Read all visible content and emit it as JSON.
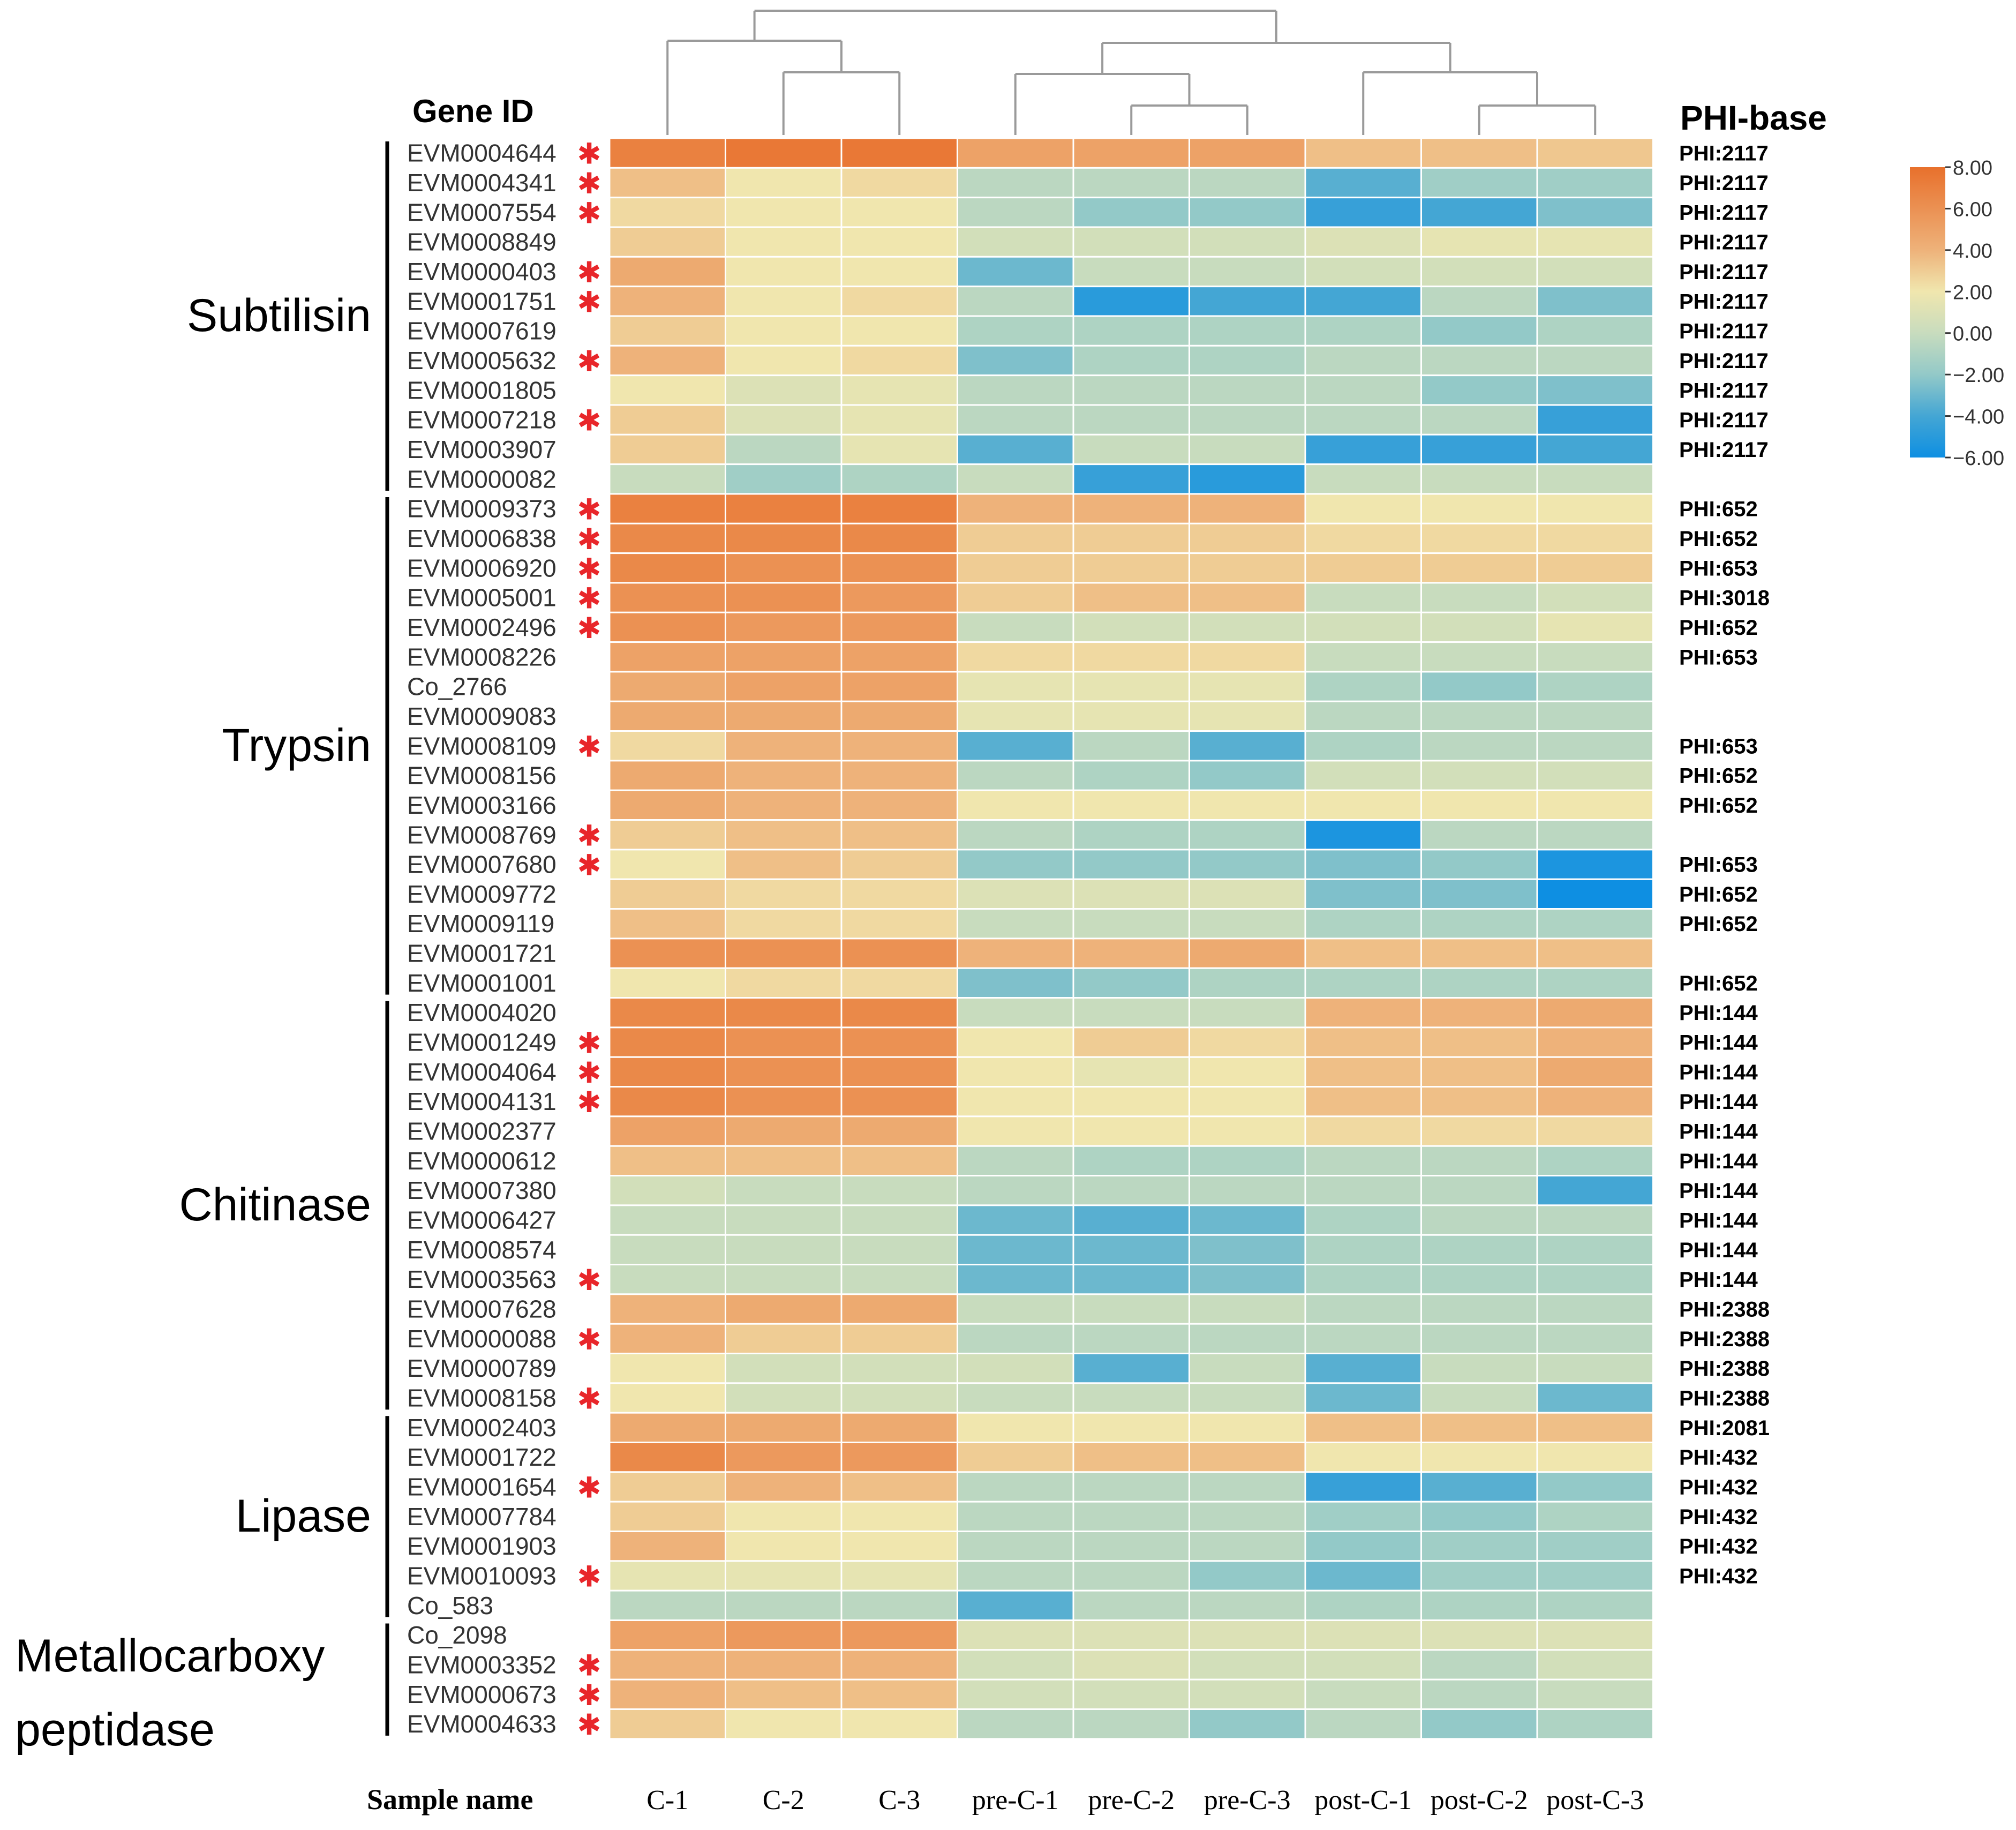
{
  "chart_data": {
    "type": "heatmap",
    "title": "",
    "row_header": "Gene ID",
    "right_header": "PHI-base",
    "xlabel": "Sample name",
    "columns": [
      "C-1",
      "C-2",
      "C-3",
      "pre-C-1",
      "pre-C-2",
      "pre-C-3",
      "post-C-1",
      "post-C-2",
      "post-C-3"
    ],
    "colorbar": {
      "ticks": [
        "8.00",
        "6.00",
        "4.00",
        "2.00",
        "0.00",
        "−2.00",
        "−4.00",
        "−6.00"
      ],
      "range": [
        -6,
        8
      ],
      "stops": [
        {
          "value": 8,
          "color": "#e8702c"
        },
        {
          "value": 4,
          "color": "#eeb27a"
        },
        {
          "value": 2,
          "color": "#f0e6ae"
        },
        {
          "value": 0,
          "color": "#c8dcbe"
        },
        {
          "value": -2,
          "color": "#93c9c8"
        },
        {
          "value": -4,
          "color": "#44a6d4"
        },
        {
          "value": -6,
          "color": "#0e8fe2"
        }
      ]
    },
    "mark_symbol": "✱",
    "mark_color": "#e8262a",
    "groups": [
      {
        "name": "Subtilisin",
        "lines": [
          "Subtilisin"
        ],
        "start": 0,
        "end": 11
      },
      {
        "name": "Trypsin",
        "lines": [
          "Trypsin"
        ],
        "start": 12,
        "end": 28
      },
      {
        "name": "Chitinase",
        "lines": [
          "Chitinase"
        ],
        "start": 29,
        "end": 42
      },
      {
        "name": "Lipase",
        "lines": [
          "Lipase"
        ],
        "start": 43,
        "end": 49
      },
      {
        "name": "Metallocarboxy peptidase",
        "lines": [
          "Metallocarboxy",
          "peptidase"
        ],
        "start": 50,
        "end": 53
      }
    ],
    "rows": [
      {
        "id": "EVM0004644",
        "mark": true,
        "phi": "PHI:2117",
        "values": [
          7.0,
          7.5,
          7.5,
          5.0,
          5.0,
          5.0,
          3.5,
          3.5,
          3.2
        ]
      },
      {
        "id": "EVM0004341",
        "mark": true,
        "phi": "PHI:2117",
        "values": [
          3.5,
          2.0,
          2.5,
          -0.5,
          -0.5,
          -0.5,
          -3.5,
          -1.5,
          -1.5
        ]
      },
      {
        "id": "EVM0007554",
        "mark": true,
        "phi": "PHI:2117",
        "values": [
          2.5,
          2.0,
          2.0,
          -0.5,
          -2.0,
          -2.0,
          -4.5,
          -4.0,
          -2.5
        ]
      },
      {
        "id": "EVM0008849",
        "mark": false,
        "phi": "PHI:2117",
        "values": [
          3.0,
          2.0,
          2.0,
          0.5,
          0.5,
          0.5,
          1.0,
          1.5,
          1.5
        ]
      },
      {
        "id": "EVM0000403",
        "mark": true,
        "phi": "PHI:2117",
        "values": [
          4.5,
          2.0,
          2.0,
          -3.0,
          0.0,
          0.0,
          0.5,
          0.5,
          0.5
        ]
      },
      {
        "id": "EVM0001751",
        "mark": true,
        "phi": "PHI:2117",
        "values": [
          4.0,
          2.0,
          2.5,
          -0.5,
          -5.0,
          -4.0,
          -4.0,
          -0.5,
          -2.5
        ]
      },
      {
        "id": "EVM0007619",
        "mark": false,
        "phi": "PHI:2117",
        "values": [
          3.0,
          2.0,
          2.0,
          -1.0,
          -1.0,
          -1.0,
          -1.0,
          -2.0,
          -1.0
        ]
      },
      {
        "id": "EVM0005632",
        "mark": true,
        "phi": "PHI:2117",
        "values": [
          4.0,
          2.0,
          2.5,
          -2.5,
          -1.0,
          -1.0,
          -0.5,
          -0.5,
          -0.5
        ]
      },
      {
        "id": "EVM0001805",
        "mark": false,
        "phi": "PHI:2117",
        "values": [
          2.0,
          1.0,
          1.5,
          -0.5,
          -0.5,
          -0.5,
          -0.5,
          -2.0,
          -2.5
        ]
      },
      {
        "id": "EVM0007218",
        "mark": true,
        "phi": "PHI:2117",
        "values": [
          3.0,
          1.0,
          1.5,
          -0.5,
          -0.5,
          -0.5,
          -0.5,
          -0.5,
          -4.5
        ]
      },
      {
        "id": "EVM0003907",
        "mark": false,
        "phi": "PHI:2117",
        "values": [
          3.0,
          -0.5,
          1.5,
          -3.5,
          0.0,
          0.0,
          -4.5,
          -4.5,
          -4.0
        ]
      },
      {
        "id": "EVM0000082",
        "mark": false,
        "phi": "",
        "values": [
          0.0,
          -1.5,
          -1.0,
          0.0,
          -4.5,
          -5.0,
          0.0,
          0.0,
          0.0
        ]
      },
      {
        "id": "EVM0009373",
        "mark": true,
        "phi": "PHI:652",
        "values": [
          7.0,
          7.0,
          7.0,
          4.0,
          4.0,
          4.0,
          2.0,
          2.0,
          2.0
        ]
      },
      {
        "id": "EVM0006838",
        "mark": true,
        "phi": "PHI:652",
        "values": [
          6.5,
          6.5,
          6.5,
          3.0,
          3.0,
          3.0,
          2.5,
          2.5,
          2.5
        ]
      },
      {
        "id": "EVM0006920",
        "mark": true,
        "phi": "PHI:653",
        "values": [
          6.5,
          6.0,
          6.0,
          3.0,
          3.0,
          3.0,
          3.0,
          3.0,
          3.0
        ]
      },
      {
        "id": "EVM0005001",
        "mark": true,
        "phi": "PHI:3018",
        "values": [
          6.0,
          6.0,
          5.5,
          3.0,
          3.5,
          3.5,
          0.0,
          0.0,
          0.5
        ]
      },
      {
        "id": "EVM0002496",
        "mark": true,
        "phi": "PHI:652",
        "values": [
          6.0,
          5.5,
          5.5,
          0.0,
          0.5,
          0.5,
          0.5,
          0.5,
          1.5
        ]
      },
      {
        "id": "EVM0008226",
        "mark": false,
        "phi": "PHI:653",
        "values": [
          5.0,
          5.0,
          5.0,
          2.5,
          2.5,
          2.5,
          0.0,
          0.0,
          0.0
        ]
      },
      {
        "id": "Co_2766",
        "mark": false,
        "phi": "",
        "values": [
          4.5,
          5.0,
          5.0,
          1.5,
          1.5,
          1.5,
          -1.0,
          -2.0,
          -1.0
        ]
      },
      {
        "id": "EVM0009083",
        "mark": false,
        "phi": "",
        "values": [
          4.5,
          4.5,
          4.5,
          1.5,
          1.5,
          1.5,
          -0.5,
          -0.5,
          -0.5
        ]
      },
      {
        "id": "EVM0008109",
        "mark": true,
        "phi": "PHI:653",
        "values": [
          2.5,
          4.0,
          4.0,
          -3.5,
          -0.5,
          -3.5,
          -1.0,
          -0.5,
          -0.5
        ]
      },
      {
        "id": "EVM0008156",
        "mark": false,
        "phi": "PHI:652",
        "values": [
          4.5,
          4.0,
          4.0,
          -0.5,
          -1.0,
          -2.0,
          0.5,
          0.5,
          0.5
        ]
      },
      {
        "id": "EVM0003166",
        "mark": false,
        "phi": "PHI:652",
        "values": [
          4.5,
          4.0,
          4.0,
          2.0,
          2.0,
          2.0,
          2.0,
          2.0,
          2.0
        ]
      },
      {
        "id": "EVM0008769",
        "mark": true,
        "phi": "",
        "values": [
          3.0,
          3.5,
          3.5,
          -0.5,
          -1.0,
          -1.0,
          -5.5,
          -0.5,
          -0.5
        ]
      },
      {
        "id": "EVM0007680",
        "mark": true,
        "phi": "PHI:653",
        "values": [
          2.0,
          3.5,
          3.0,
          -2.0,
          -2.0,
          -2.0,
          -2.5,
          -2.0,
          -5.5
        ]
      },
      {
        "id": "EVM0009772",
        "mark": false,
        "phi": "PHI:652",
        "values": [
          3.0,
          2.5,
          2.5,
          1.0,
          1.0,
          1.0,
          -2.5,
          -2.5,
          -6.0
        ]
      },
      {
        "id": "EVM0009119",
        "mark": false,
        "phi": "PHI:652",
        "values": [
          3.5,
          2.5,
          2.5,
          0.0,
          0.0,
          0.0,
          -1.0,
          -1.0,
          -1.0
        ]
      },
      {
        "id": "EVM0001721",
        "mark": false,
        "phi": "",
        "values": [
          6.0,
          6.0,
          6.0,
          4.0,
          4.0,
          4.5,
          3.5,
          3.5,
          3.5
        ]
      },
      {
        "id": "EVM0001001",
        "mark": false,
        "phi": "PHI:652",
        "values": [
          2.0,
          2.5,
          2.5,
          -2.5,
          -2.0,
          -1.0,
          -1.0,
          -1.0,
          -1.0
        ]
      },
      {
        "id": "EVM0004020",
        "mark": false,
        "phi": "PHI:144",
        "values": [
          6.5,
          6.5,
          6.5,
          0.0,
          0.0,
          0.0,
          4.0,
          4.0,
          4.5
        ]
      },
      {
        "id": "EVM0001249",
        "mark": true,
        "phi": "PHI:144",
        "values": [
          6.5,
          6.0,
          6.0,
          2.0,
          3.0,
          2.5,
          3.5,
          3.5,
          4.0
        ]
      },
      {
        "id": "EVM0004064",
        "mark": true,
        "phi": "PHI:144",
        "values": [
          6.5,
          6.0,
          6.0,
          2.0,
          1.5,
          2.0,
          3.5,
          3.5,
          4.5
        ]
      },
      {
        "id": "EVM0004131",
        "mark": true,
        "phi": "PHI:144",
        "values": [
          6.5,
          6.0,
          6.0,
          2.0,
          2.0,
          2.0,
          3.5,
          3.5,
          4.0
        ]
      },
      {
        "id": "EVM0002377",
        "mark": false,
        "phi": "PHI:144",
        "values": [
          5.0,
          4.5,
          4.5,
          2.0,
          2.0,
          2.0,
          2.5,
          2.5,
          2.5
        ]
      },
      {
        "id": "EVM0000612",
        "mark": false,
        "phi": "PHI:144",
        "values": [
          3.5,
          3.5,
          3.5,
          -0.5,
          -1.0,
          -1.0,
          -0.5,
          -0.5,
          -1.0
        ]
      },
      {
        "id": "EVM0007380",
        "mark": false,
        "phi": "PHI:144",
        "values": [
          0.5,
          0.0,
          0.0,
          -0.5,
          -0.5,
          -0.5,
          -0.5,
          -0.5,
          -4.0
        ]
      },
      {
        "id": "EVM0006427",
        "mark": false,
        "phi": "PHI:144",
        "values": [
          0.0,
          0.0,
          0.0,
          -3.0,
          -3.5,
          -3.0,
          -1.0,
          -0.5,
          -0.5
        ]
      },
      {
        "id": "EVM0008574",
        "mark": false,
        "phi": "PHI:144",
        "values": [
          0.0,
          0.0,
          0.0,
          -3.0,
          -3.0,
          -2.5,
          -1.0,
          -1.0,
          -1.0
        ]
      },
      {
        "id": "EVM0003563",
        "mark": true,
        "phi": "PHI:144",
        "values": [
          0.0,
          0.0,
          0.0,
          -3.0,
          -3.0,
          -2.5,
          -1.0,
          -1.0,
          -1.0
        ]
      },
      {
        "id": "EVM0007628",
        "mark": false,
        "phi": "PHI:2388",
        "values": [
          4.0,
          4.5,
          4.5,
          0.0,
          0.0,
          0.0,
          -0.5,
          -0.5,
          -0.5
        ]
      },
      {
        "id": "EVM0000088",
        "mark": true,
        "phi": "PHI:2388",
        "values": [
          4.0,
          3.0,
          3.0,
          -0.5,
          -0.5,
          -0.5,
          -0.5,
          -0.5,
          -0.5
        ]
      },
      {
        "id": "EVM0000789",
        "mark": false,
        "phi": "PHI:2388",
        "values": [
          2.0,
          0.5,
          0.5,
          0.5,
          -3.5,
          0.0,
          -3.5,
          0.0,
          0.0
        ]
      },
      {
        "id": "EVM0008158",
        "mark": true,
        "phi": "PHI:2388",
        "values": [
          2.0,
          0.5,
          0.5,
          0.0,
          0.0,
          0.0,
          -3.0,
          0.0,
          -3.0
        ]
      },
      {
        "id": "EVM0002403",
        "mark": false,
        "phi": "PHI:2081",
        "values": [
          4.5,
          4.5,
          4.5,
          2.0,
          2.0,
          2.0,
          3.5,
          3.5,
          3.5
        ]
      },
      {
        "id": "EVM0001722",
        "mark": false,
        "phi": "PHI:432",
        "values": [
          6.5,
          5.5,
          5.5,
          3.0,
          3.5,
          3.5,
          2.0,
          2.0,
          2.0
        ]
      },
      {
        "id": "EVM0001654",
        "mark": true,
        "phi": "PHI:432",
        "values": [
          3.0,
          4.0,
          3.5,
          -0.5,
          -0.5,
          -0.5,
          -4.5,
          -3.5,
          -2.0
        ]
      },
      {
        "id": "EVM0007784",
        "mark": false,
        "phi": "PHI:432",
        "values": [
          3.0,
          2.0,
          2.0,
          -0.5,
          -0.5,
          -0.5,
          -1.5,
          -2.0,
          -1.0
        ]
      },
      {
        "id": "EVM0001903",
        "mark": false,
        "phi": "PHI:432",
        "values": [
          4.0,
          2.0,
          2.0,
          -0.5,
          -0.5,
          -0.5,
          -2.0,
          -1.5,
          -1.5
        ]
      },
      {
        "id": "EVM0010093",
        "mark": true,
        "phi": "PHI:432",
        "values": [
          1.5,
          1.5,
          1.5,
          -0.5,
          -0.5,
          -2.0,
          -3.0,
          -1.5,
          -1.5
        ]
      },
      {
        "id": "Co_583",
        "mark": false,
        "phi": "",
        "values": [
          -0.5,
          -0.5,
          -0.5,
          -3.5,
          -0.5,
          -0.5,
          -1.0,
          -1.0,
          -1.0
        ]
      },
      {
        "id": "Co_2098",
        "mark": false,
        "phi": "",
        "values": [
          5.0,
          5.5,
          5.5,
          1.0,
          1.0,
          1.0,
          1.0,
          1.0,
          1.0
        ]
      },
      {
        "id": "EVM0003352",
        "mark": true,
        "phi": "",
        "values": [
          4.0,
          4.0,
          4.0,
          0.5,
          1.0,
          0.5,
          0.5,
          -0.5,
          0.5
        ]
      },
      {
        "id": "EVM0000673",
        "mark": true,
        "phi": "",
        "values": [
          4.0,
          3.5,
          3.5,
          0.5,
          0.5,
          0.5,
          0.0,
          -0.5,
          0.0
        ]
      },
      {
        "id": "EVM0004633",
        "mark": true,
        "phi": "",
        "values": [
          3.0,
          2.0,
          2.0,
          -0.5,
          -0.5,
          -2.0,
          -0.5,
          -2.0,
          -1.0
        ]
      }
    ]
  }
}
